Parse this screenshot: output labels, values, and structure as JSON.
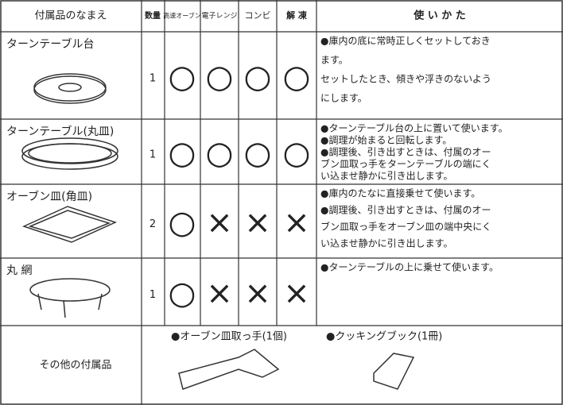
{
  "header": {
    "name": "付属品のなまえ",
    "quantity": "数量",
    "modes": [
      "高速オーブン",
      "電子レンジ",
      "コンビ",
      "解 凍"
    ],
    "usage": "使 い か た"
  },
  "rows": [
    {
      "name": "ターンテーブル台",
      "quantity": "1",
      "marks": [
        "○",
        "○",
        "○",
        "○"
      ],
      "usage": [
        "●庫内の底に常時正しくセットしておき",
        "ます。",
        "セットしたとき、傾きや浮きのないよう",
        "にします。"
      ]
    },
    {
      "name": "ターンテーブル(丸皿)",
      "quantity": "1",
      "marks": [
        "○",
        "○",
        "○",
        "○"
      ],
      "usage": [
        "●ターンテーブル台の上に置いて使います。",
        "●調理が始まると回転します。",
        "●調理後、引き出すときは、付属のオー",
        "ブン皿取っ手をターンテーブルの端にく",
        "い込ませ静かに引き出します。"
      ]
    },
    {
      "name": "オーブン皿(角皿)",
      "quantity": "2",
      "marks": [
        "○",
        "×",
        "×",
        "×"
      ],
      "usage": [
        "●庫内のたなに直接乗せて使います。",
        "●調理後、引き出すときは、付属のオー",
        "ブン皿取っ手をオーブン皿の端中央にく",
        "い込ませ静かに引き出します。"
      ]
    },
    {
      "name": "丸 網",
      "quantity": "1",
      "marks": [
        "○",
        "×",
        "×",
        "×"
      ],
      "usage": [
        "●ターンテーブルの上に乗せて使います。"
      ]
    }
  ],
  "other": {
    "label": "その他の付属品",
    "items": [
      "●オーブン皿取っ手(1個)",
      "●クッキングブック(1冊)"
    ]
  }
}
